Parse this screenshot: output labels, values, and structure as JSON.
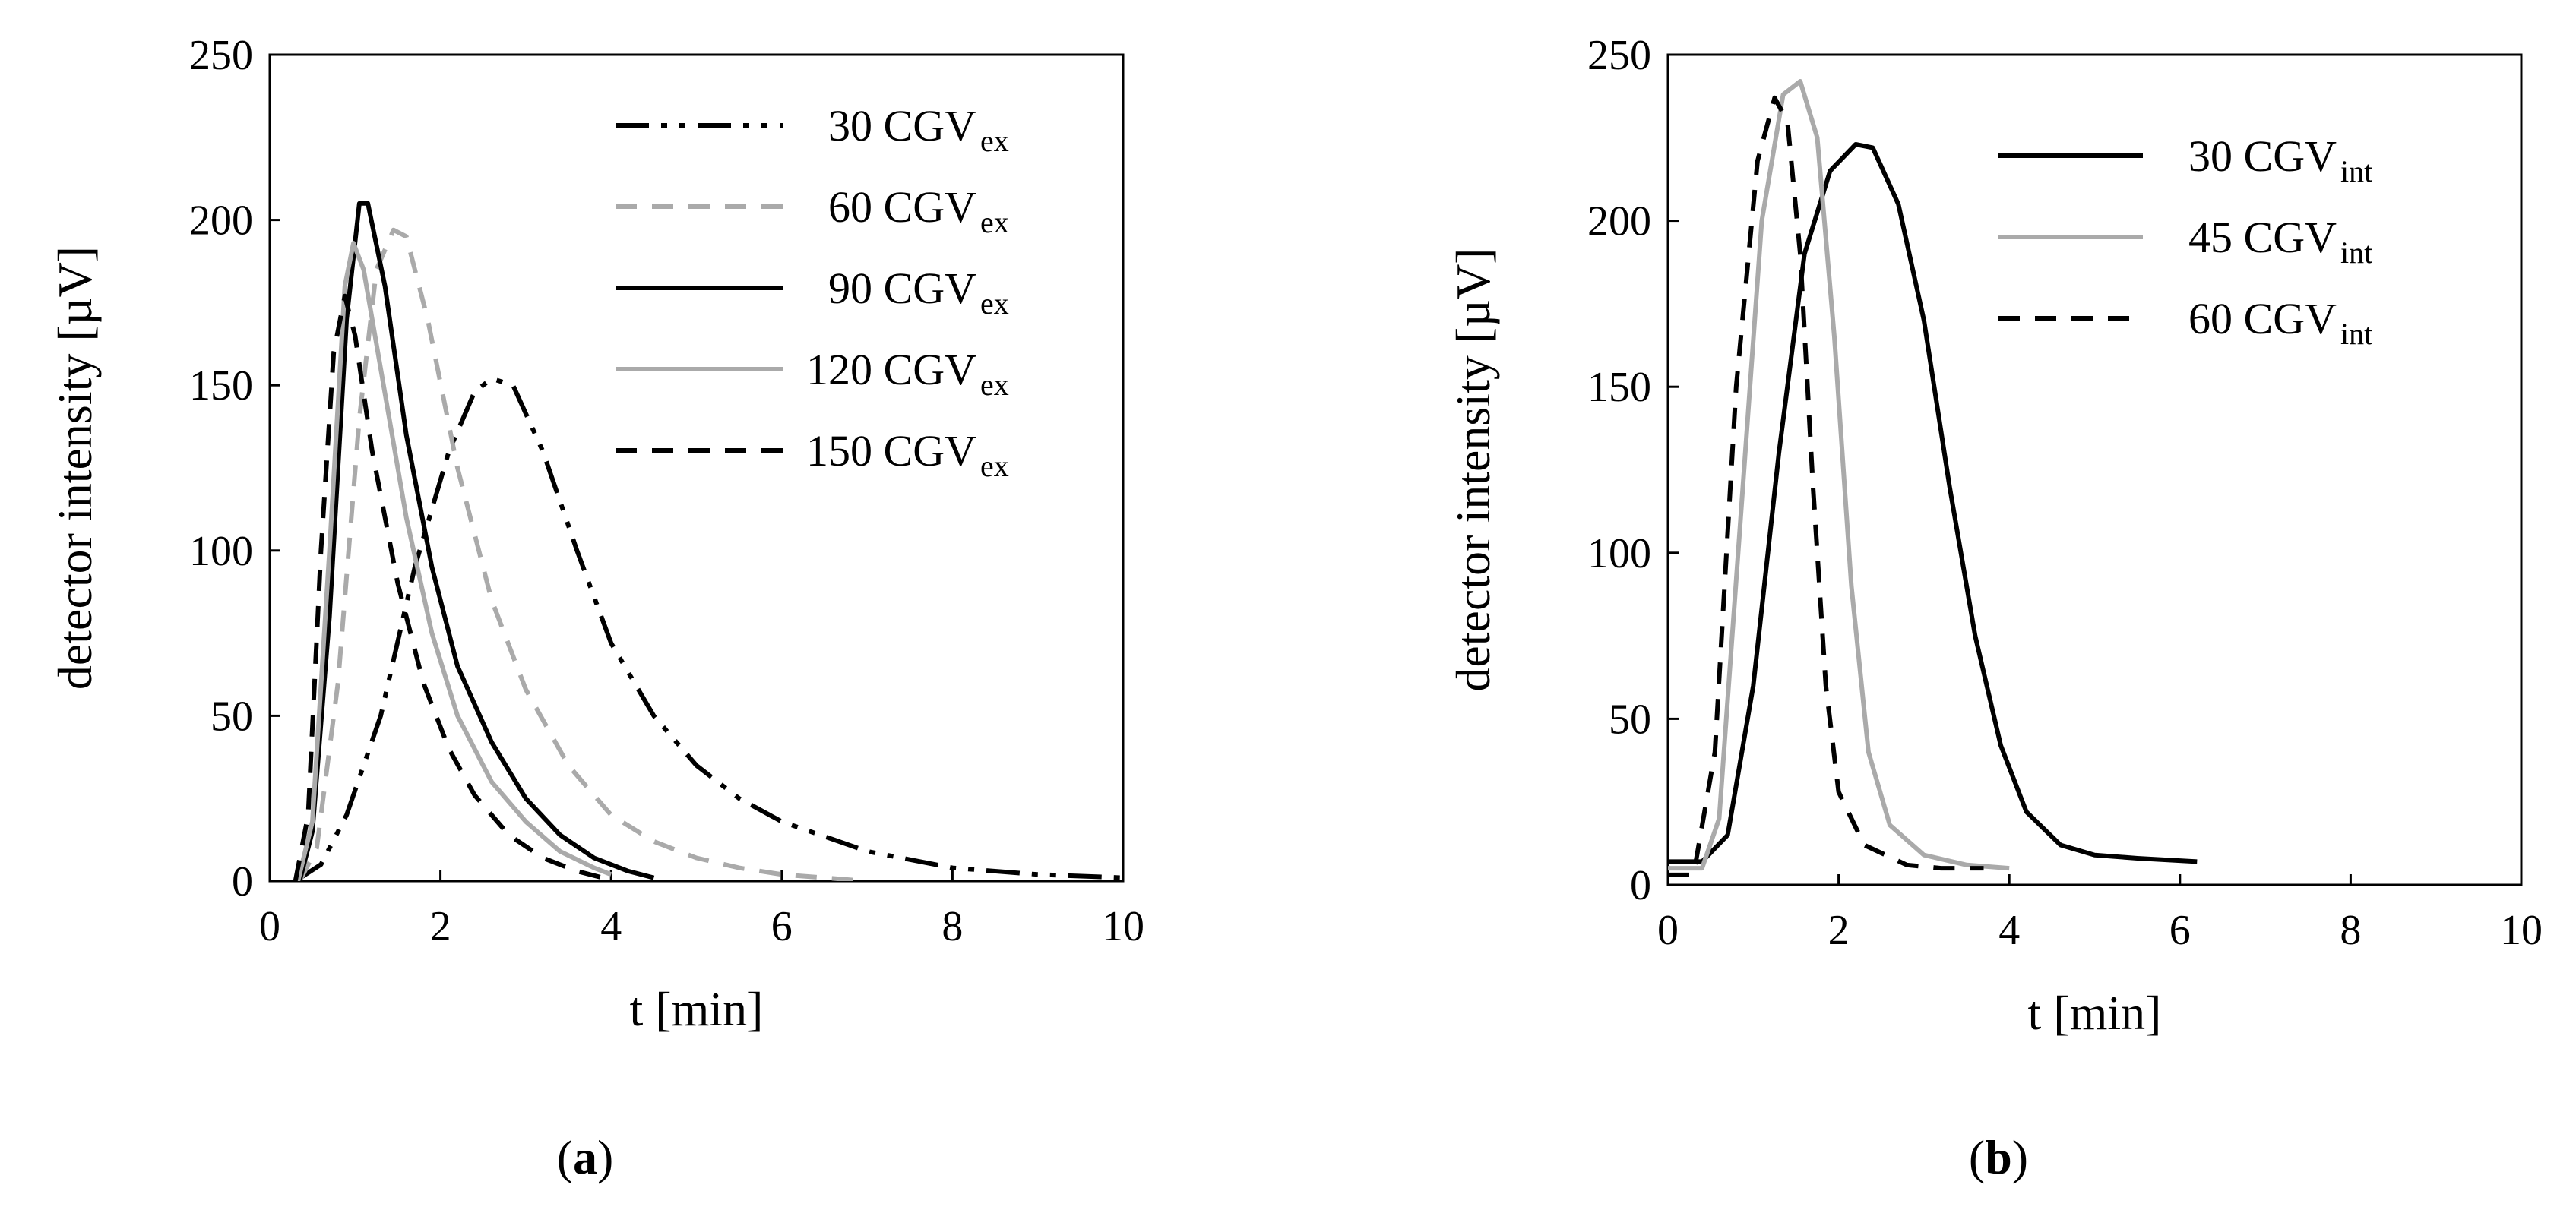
{
  "chart_data": [
    {
      "type": "line",
      "panel": "a",
      "caption": "(a)",
      "xlabel": "t [min]",
      "ylabel": "detector intensity [µV]",
      "xlim": [
        0,
        10
      ],
      "ylim": [
        0,
        250
      ],
      "xticks": [
        0,
        2,
        4,
        6,
        8,
        10
      ],
      "yticks": [
        0,
        50,
        100,
        150,
        200,
        250
      ],
      "legend_position": "top-right",
      "series": [
        {
          "name": "30 CGV",
          "sub": "ex",
          "color": "#000000",
          "dash": "dash-dot-dot",
          "points": [
            [
              0.3,
              0
            ],
            [
              0.6,
              5
            ],
            [
              0.9,
              20
            ],
            [
              1.3,
              50
            ],
            [
              1.7,
              95
            ],
            [
              2.1,
              130
            ],
            [
              2.4,
              148
            ],
            [
              2.6,
              152
            ],
            [
              2.85,
              150
            ],
            [
              3.2,
              130
            ],
            [
              3.6,
              100
            ],
            [
              4.0,
              72
            ],
            [
              4.5,
              50
            ],
            [
              5.0,
              35
            ],
            [
              5.5,
              25
            ],
            [
              6.0,
              18
            ],
            [
              7.0,
              9
            ],
            [
              8.0,
              4
            ],
            [
              9.0,
              2
            ],
            [
              10.0,
              1
            ]
          ]
        },
        {
          "name": "60 CGV",
          "sub": "ex",
          "color": "#aaaaaa",
          "dash": "dash",
          "points": [
            [
              0.35,
              0
            ],
            [
              0.55,
              10
            ],
            [
              0.8,
              60
            ],
            [
              1.05,
              140
            ],
            [
              1.25,
              185
            ],
            [
              1.45,
              197
            ],
            [
              1.6,
              195
            ],
            [
              1.85,
              170
            ],
            [
              2.2,
              125
            ],
            [
              2.6,
              85
            ],
            [
              3.0,
              58
            ],
            [
              3.5,
              35
            ],
            [
              4.0,
              20
            ],
            [
              4.5,
              12
            ],
            [
              5.0,
              7
            ],
            [
              5.5,
              4
            ],
            [
              6.0,
              2
            ],
            [
              7.0,
              0
            ]
          ]
        },
        {
          "name": "90 CGV",
          "sub": "ex",
          "color": "#000000",
          "dash": "solid",
          "points": [
            [
              0.35,
              0
            ],
            [
              0.5,
              15
            ],
            [
              0.7,
              80
            ],
            [
              0.9,
              170
            ],
            [
              1.05,
              205
            ],
            [
              1.15,
              205
            ],
            [
              1.35,
              180
            ],
            [
              1.6,
              135
            ],
            [
              1.9,
              95
            ],
            [
              2.2,
              65
            ],
            [
              2.6,
              42
            ],
            [
              3.0,
              25
            ],
            [
              3.4,
              14
            ],
            [
              3.8,
              7
            ],
            [
              4.2,
              3
            ],
            [
              4.5,
              1
            ]
          ]
        },
        {
          "name": "120 CGV",
          "sub": "ex",
          "color": "#aaaaaa",
          "dash": "solid",
          "points": [
            [
              0.33,
              0
            ],
            [
              0.5,
              18
            ],
            [
              0.7,
              100
            ],
            [
              0.88,
              180
            ],
            [
              0.98,
              193
            ],
            [
              1.1,
              185
            ],
            [
              1.3,
              155
            ],
            [
              1.6,
              110
            ],
            [
              1.9,
              75
            ],
            [
              2.2,
              50
            ],
            [
              2.6,
              30
            ],
            [
              3.0,
              18
            ],
            [
              3.4,
              9
            ],
            [
              3.8,
              4
            ],
            [
              4.0,
              2
            ]
          ]
        },
        {
          "name": "150 CGV",
          "sub": "ex",
          "color": "#000000",
          "dash": "dash",
          "points": [
            [
              0.3,
              0
            ],
            [
              0.45,
              20
            ],
            [
              0.6,
              100
            ],
            [
              0.75,
              160
            ],
            [
              0.88,
              177
            ],
            [
              1.0,
              165
            ],
            [
              1.2,
              130
            ],
            [
              1.5,
              90
            ],
            [
              1.8,
              60
            ],
            [
              2.1,
              40
            ],
            [
              2.4,
              26
            ],
            [
              2.8,
              14
            ],
            [
              3.2,
              7
            ],
            [
              3.6,
              3
            ],
            [
              3.9,
              1
            ]
          ]
        }
      ]
    },
    {
      "type": "line",
      "panel": "b",
      "caption": "(b)",
      "xlabel": "t [min]",
      "ylabel": "detector intensity [µV]",
      "xlim": [
        0,
        10
      ],
      "ylim": [
        0,
        250
      ],
      "xticks": [
        0,
        2,
        4,
        6,
        8,
        10
      ],
      "yticks": [
        0,
        50,
        100,
        150,
        200,
        250
      ],
      "legend_position": "top-right",
      "series": [
        {
          "name": "30 CGV",
          "sub": "int",
          "color": "#000000",
          "dash": "solid",
          "points": [
            [
              0,
              7
            ],
            [
              0.4,
              7
            ],
            [
              0.7,
              15
            ],
            [
              1.0,
              60
            ],
            [
              1.3,
              130
            ],
            [
              1.6,
              190
            ],
            [
              1.9,
              215
            ],
            [
              2.2,
              223
            ],
            [
              2.4,
              222
            ],
            [
              2.7,
              205
            ],
            [
              3.0,
              170
            ],
            [
              3.3,
              120
            ],
            [
              3.6,
              75
            ],
            [
              3.9,
              42
            ],
            [
              4.2,
              22
            ],
            [
              4.6,
              12
            ],
            [
              5.0,
              9
            ],
            [
              5.5,
              8
            ],
            [
              6.2,
              7
            ]
          ]
        },
        {
          "name": "45 CGV",
          "sub": "int",
          "color": "#aaaaaa",
          "dash": "solid",
          "points": [
            [
              0,
              5
            ],
            [
              0.4,
              5
            ],
            [
              0.6,
              20
            ],
            [
              0.85,
              110
            ],
            [
              1.1,
              200
            ],
            [
              1.35,
              238
            ],
            [
              1.55,
              242
            ],
            [
              1.75,
              225
            ],
            [
              1.95,
              165
            ],
            [
              2.15,
              90
            ],
            [
              2.35,
              40
            ],
            [
              2.6,
              18
            ],
            [
              3.0,
              9
            ],
            [
              3.5,
              6
            ],
            [
              4.0,
              5
            ]
          ]
        },
        {
          "name": "60 CGV",
          "sub": "int",
          "color": "#000000",
          "dash": "dash",
          "points": [
            [
              0,
              3
            ],
            [
              0.3,
              3
            ],
            [
              0.55,
              40
            ],
            [
              0.8,
              150
            ],
            [
              1.05,
              218
            ],
            [
              1.25,
              237
            ],
            [
              1.4,
              230
            ],
            [
              1.55,
              190
            ],
            [
              1.7,
              120
            ],
            [
              1.85,
              60
            ],
            [
              2.0,
              28
            ],
            [
              2.3,
              12
            ],
            [
              2.8,
              6
            ],
            [
              3.2,
              5
            ],
            [
              3.7,
              5
            ]
          ]
        }
      ]
    }
  ]
}
